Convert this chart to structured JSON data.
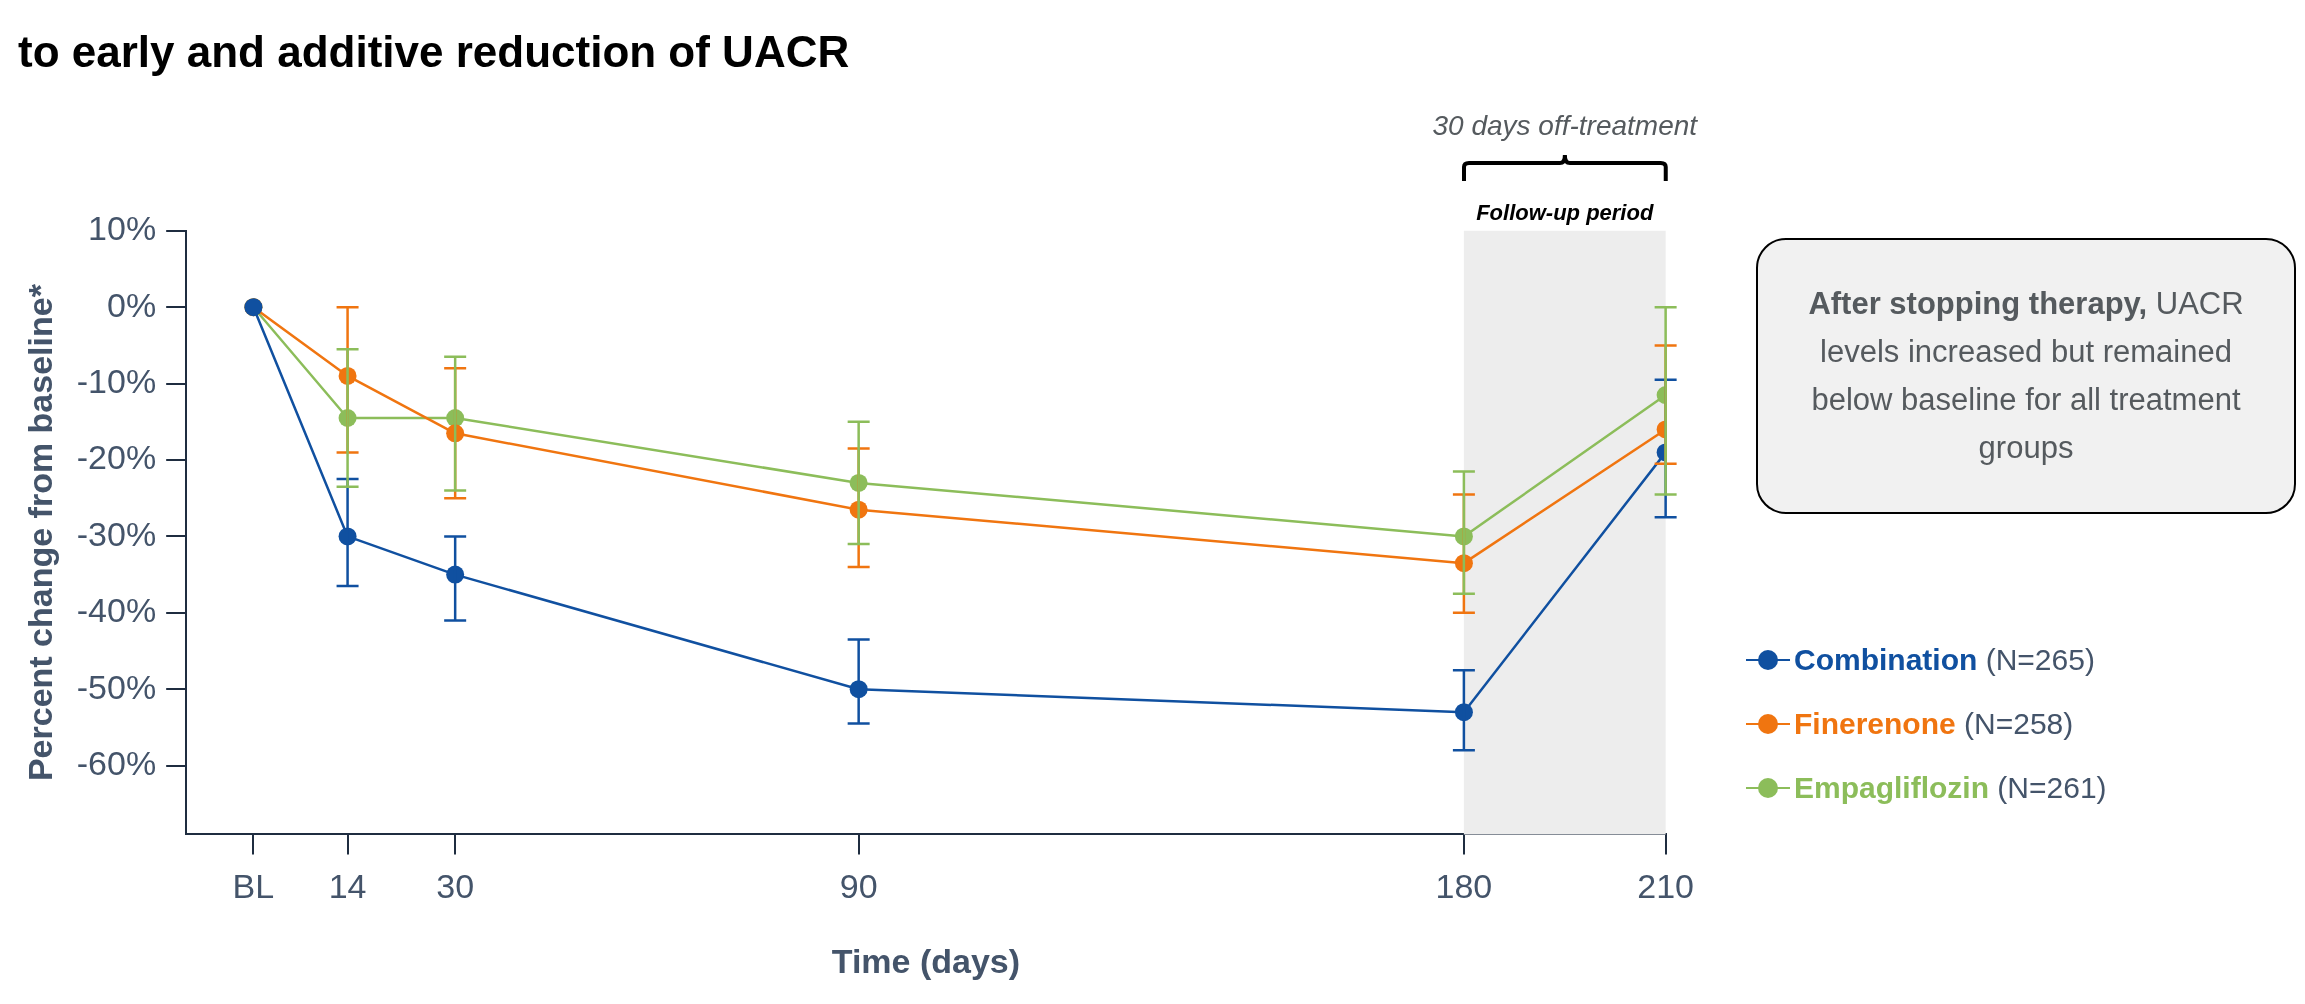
{
  "chart_data": {
    "type": "line",
    "title": "to early and additive reduction of UACR",
    "xlabel": "Time (days)",
    "ylabel": "Percent change from baseline*",
    "x": [
      0,
      14,
      30,
      90,
      180,
      210
    ],
    "xlim": [
      -10,
      210
    ],
    "xticks": [
      {
        "value": 0,
        "label": "BL"
      },
      14,
      30,
      90,
      180,
      210
    ],
    "ylim": [
      -69,
      10
    ],
    "yticks": [
      {
        "value": 10,
        "label": "10%"
      },
      {
        "value": 0,
        "label": "0%"
      },
      {
        "value": -10,
        "label": "-10%"
      },
      {
        "value": -20,
        "label": "-20%"
      },
      {
        "value": -30,
        "label": "-30%"
      },
      {
        "value": -40,
        "label": "-40%"
      },
      {
        "value": -50,
        "label": "-50%"
      },
      {
        "value": -60,
        "label": "-60%"
      }
    ],
    "series": [
      {
        "name": "Combination (N=265)",
        "color": "#1050a0",
        "values": [
          0,
          -30,
          -35,
          -50,
          -53,
          -19
        ],
        "errors": [
          null,
          [
            -36.5,
            -22.5
          ],
          [
            -41,
            -30
          ],
          [
            -54.5,
            -43.5
          ],
          [
            -58,
            -47.5
          ],
          [
            -27.5,
            -9.5
          ]
        ]
      },
      {
        "name": "Finerenone (N=258)",
        "color": "#f07510",
        "values": [
          0,
          -9,
          -16.5,
          -26.5,
          -33.5,
          -16
        ],
        "errors": [
          null,
          [
            -19,
            0
          ],
          [
            -25,
            -8
          ],
          [
            -34,
            -18.5
          ],
          [
            -40,
            -24.5
          ],
          [
            -20.5,
            -5
          ]
        ]
      },
      {
        "name": "Empagliflozin (N=261)",
        "color": "#8cbd5a",
        "values": [
          0,
          -14.5,
          -14.5,
          -23,
          -30,
          -11.5
        ],
        "errors": [
          null,
          [
            -23.5,
            -5.5
          ],
          [
            -24,
            -6.5
          ],
          [
            -31,
            -15
          ],
          [
            -37.5,
            -21.5
          ],
          [
            -24.5,
            0
          ]
        ]
      }
    ],
    "bands": [
      {
        "axis": "x",
        "from": 180,
        "to": 210,
        "label": "Follow-up period",
        "color": "#ededed"
      }
    ],
    "annotations": [
      "30 days off-treatment",
      "After stopping therapy, UACR levels increased but remained below baseline for all treatment groups"
    ],
    "marker": "circle",
    "line_style": "solid",
    "grid": false,
    "legend": "right"
  }
}
